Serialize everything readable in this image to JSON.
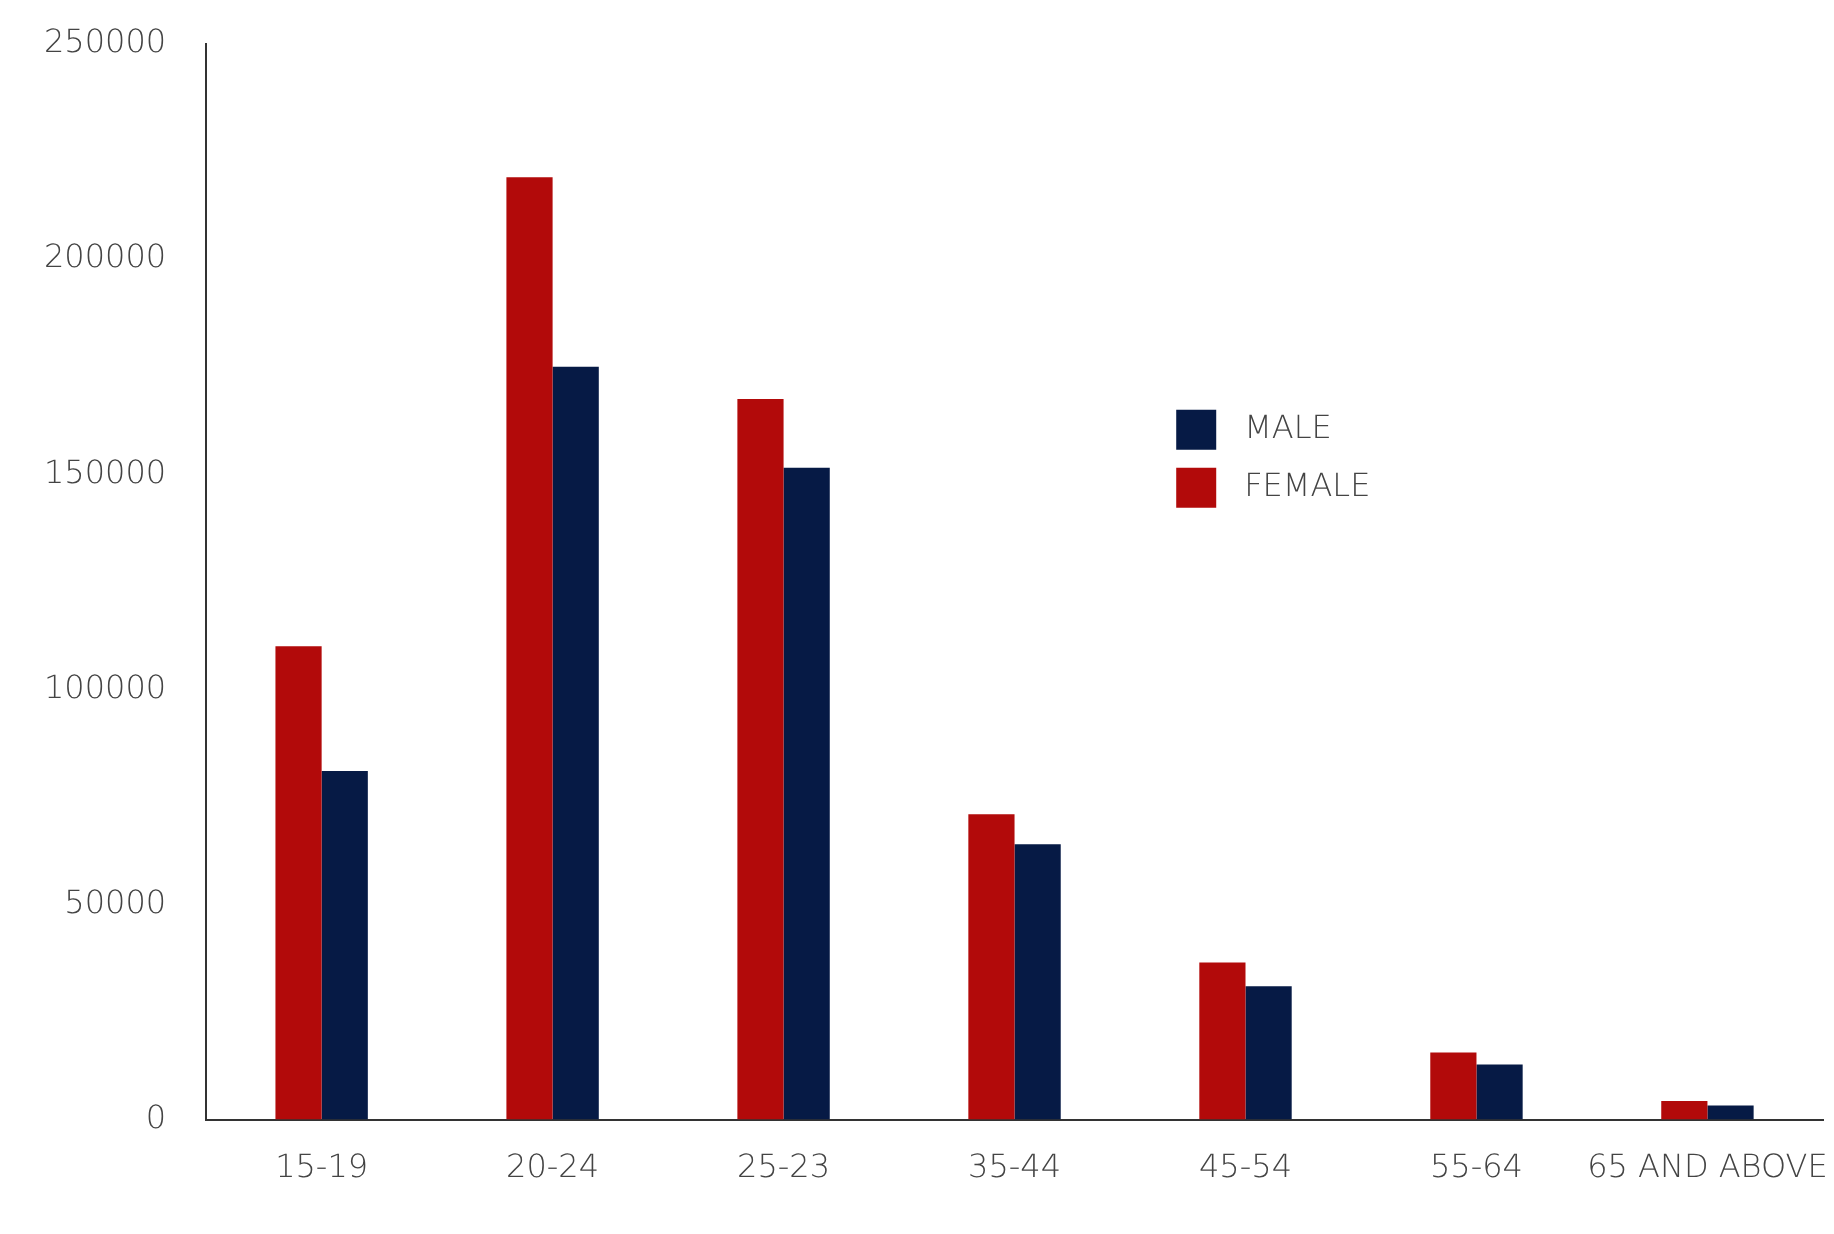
{
  "chart_data": {
    "type": "bar",
    "categories": [
      "15-19",
      "20-24",
      "25-23",
      "35-44",
      "45-54",
      "55-64",
      "65 AND ABOVE"
    ],
    "series": [
      {
        "name": "FEMALE",
        "color": "#b20a0a",
        "values": [
          110000,
          219000,
          167500,
          71000,
          36500,
          15600,
          4300
        ]
      },
      {
        "name": "MALE",
        "color": "#061a45",
        "values": [
          81000,
          175000,
          151500,
          64000,
          31000,
          12800,
          3300
        ]
      }
    ],
    "ylim": [
      0,
      250000
    ],
    "yticks": [
      0,
      50000,
      100000,
      150000,
      200000,
      250000
    ],
    "grid": false,
    "legend": "center"
  }
}
